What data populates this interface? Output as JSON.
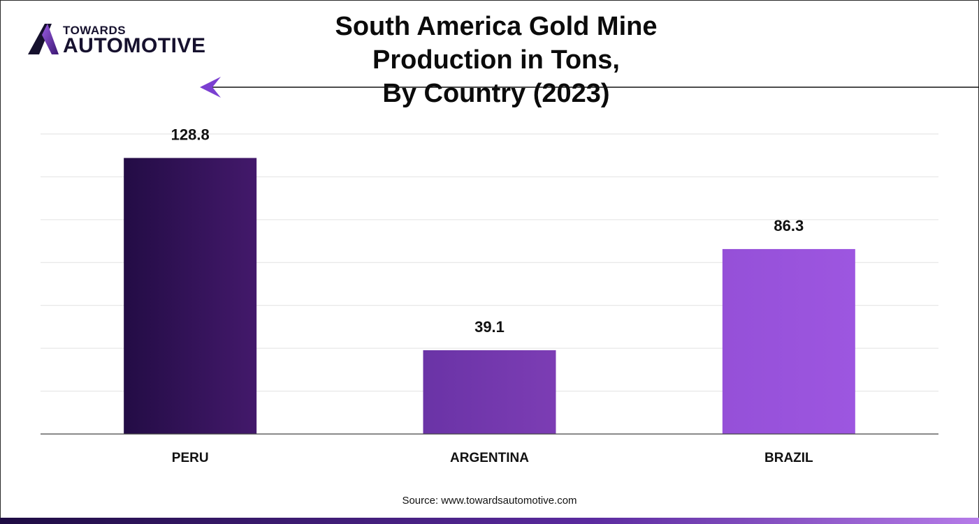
{
  "header": {
    "logo_top": "TOWARDS",
    "logo_bottom": "AUTOMOTIVE",
    "title_line1": "South America Gold Mine Production in Tons,",
    "title_line2": "By Country (2023)"
  },
  "footer": {
    "source": "Source: www.towardsautomotive.com"
  },
  "colors": {
    "accent": "#7b3fd1",
    "bar_start": [
      "#230c45",
      "#6a33a6",
      "#9550d8"
    ],
    "bar_end": [
      "#43196b",
      "#7c3db4",
      "#9d56e0"
    ]
  },
  "chart_data": {
    "type": "bar",
    "title": "South America Gold Mine Production in Tons, By Country (2023)",
    "categories": [
      "PERU",
      "ARGENTINA",
      "BRAZIL"
    ],
    "values": [
      128.8,
      39.1,
      86.3
    ],
    "value_labels": [
      "128.8",
      "39.1",
      "86.3"
    ],
    "xlabel": "",
    "ylabel": "",
    "ylim": [
      0,
      140
    ],
    "grid": true,
    "legend": "none"
  }
}
